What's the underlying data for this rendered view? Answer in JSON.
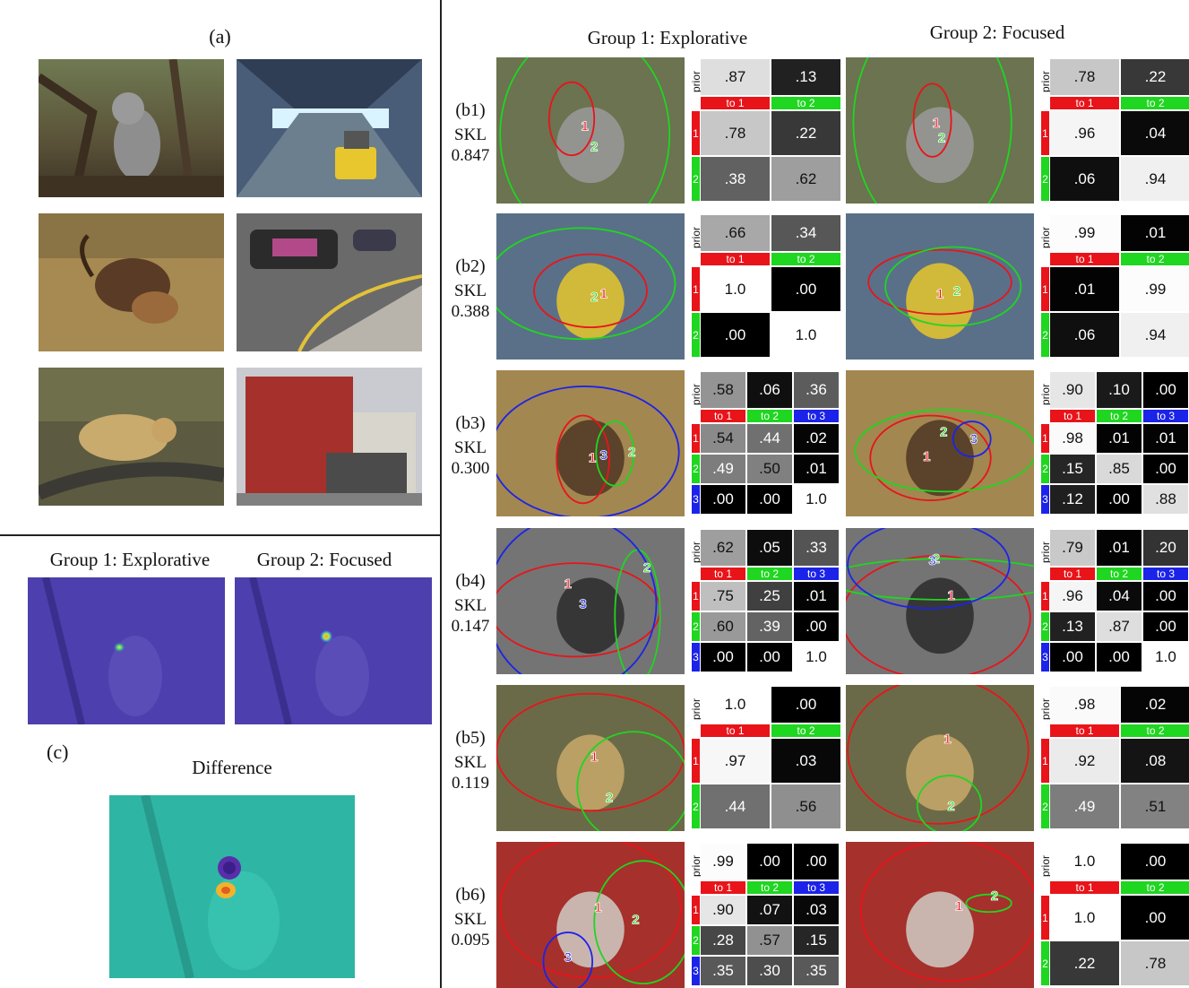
{
  "panel_a": {
    "label": "(a)"
  },
  "panel_c": {
    "label": "(c)",
    "group1_title": "Group 1: Explorative",
    "group2_title": "Group 2: Focused",
    "difference_title": "Difference"
  },
  "panel_b": {
    "group1_title": "Group 1: Explorative",
    "group2_title": "Group 2: Focused",
    "prior_label": "prior",
    "rows": [
      {
        "id": "(b1)",
        "skl_label": "SKL",
        "skl": "0.847",
        "g1": {
          "k": 2,
          "prior": [
            ".87",
            ".13"
          ],
          "matrix": [
            [
              ".78",
              ".22"
            ],
            [
              ".38",
              ".62"
            ]
          ]
        },
        "g2": {
          "k": 2,
          "prior": [
            ".78",
            ".22"
          ],
          "matrix": [
            [
              ".96",
              ".04"
            ],
            [
              ".06",
              ".94"
            ]
          ]
        }
      },
      {
        "id": "(b2)",
        "skl_label": "SKL",
        "skl": "0.388",
        "g1": {
          "k": 2,
          "prior": [
            ".66",
            ".34"
          ],
          "matrix": [
            [
              "1.0",
              ".00"
            ],
            [
              ".00",
              "1.0"
            ]
          ]
        },
        "g2": {
          "k": 2,
          "prior": [
            ".99",
            ".01"
          ],
          "matrix": [
            [
              ".01",
              ".99"
            ],
            [
              ".06",
              ".94"
            ]
          ]
        }
      },
      {
        "id": "(b3)",
        "skl_label": "SKL",
        "skl": "0.300",
        "g1": {
          "k": 3,
          "prior": [
            ".58",
            ".06",
            ".36"
          ],
          "matrix": [
            [
              ".54",
              ".44",
              ".02"
            ],
            [
              ".49",
              ".50",
              ".01"
            ],
            [
              ".00",
              ".00",
              "1.0"
            ]
          ]
        },
        "g2": {
          "k": 3,
          "prior": [
            ".90",
            ".10",
            ".00"
          ],
          "matrix": [
            [
              ".98",
              ".01",
              ".01"
            ],
            [
              ".15",
              ".85",
              ".00"
            ],
            [
              ".12",
              ".00",
              ".88"
            ]
          ]
        }
      },
      {
        "id": "(b4)",
        "skl_label": "SKL",
        "skl": "0.147",
        "g1": {
          "k": 3,
          "prior": [
            ".62",
            ".05",
            ".33"
          ],
          "matrix": [
            [
              ".75",
              ".25",
              ".01"
            ],
            [
              ".60",
              ".39",
              ".00"
            ],
            [
              ".00",
              ".00",
              "1.0"
            ]
          ]
        },
        "g2": {
          "k": 3,
          "prior": [
            ".79",
            ".01",
            ".20"
          ],
          "matrix": [
            [
              ".96",
              ".04",
              ".00"
            ],
            [
              ".13",
              ".87",
              ".00"
            ],
            [
              ".00",
              ".00",
              "1.0"
            ]
          ]
        }
      },
      {
        "id": "(b5)",
        "skl_label": "SKL",
        "skl": "0.119",
        "g1": {
          "k": 2,
          "prior": [
            "1.0",
            ".00"
          ],
          "matrix": [
            [
              ".97",
              ".03"
            ],
            [
              ".44",
              ".56"
            ]
          ]
        },
        "g2": {
          "k": 2,
          "prior": [
            ".98",
            ".02"
          ],
          "matrix": [
            [
              ".92",
              ".08"
            ],
            [
              ".49",
              ".51"
            ]
          ]
        }
      },
      {
        "id": "(b6)",
        "skl_label": "SKL",
        "skl": "0.095",
        "g1": {
          "k": 3,
          "prior": [
            ".99",
            ".00",
            ".00"
          ],
          "matrix": [
            [
              ".90",
              ".07",
              ".03"
            ],
            [
              ".28",
              ".57",
              ".15"
            ],
            [
              ".35",
              ".30",
              ".35"
            ]
          ]
        },
        "g2": {
          "k": 2,
          "prior": [
            "1.0",
            ".00"
          ],
          "matrix": [
            [
              "1.0",
              ".00"
            ],
            [
              ".22",
              ".78"
            ]
          ]
        }
      }
    ],
    "to_labels": [
      "to 1",
      "to 2",
      "to 3"
    ],
    "state_labels": [
      "1",
      "2",
      "3"
    ],
    "state_colors": [
      "#e8141a",
      "#1fd620",
      "#1c23e8"
    ]
  }
}
